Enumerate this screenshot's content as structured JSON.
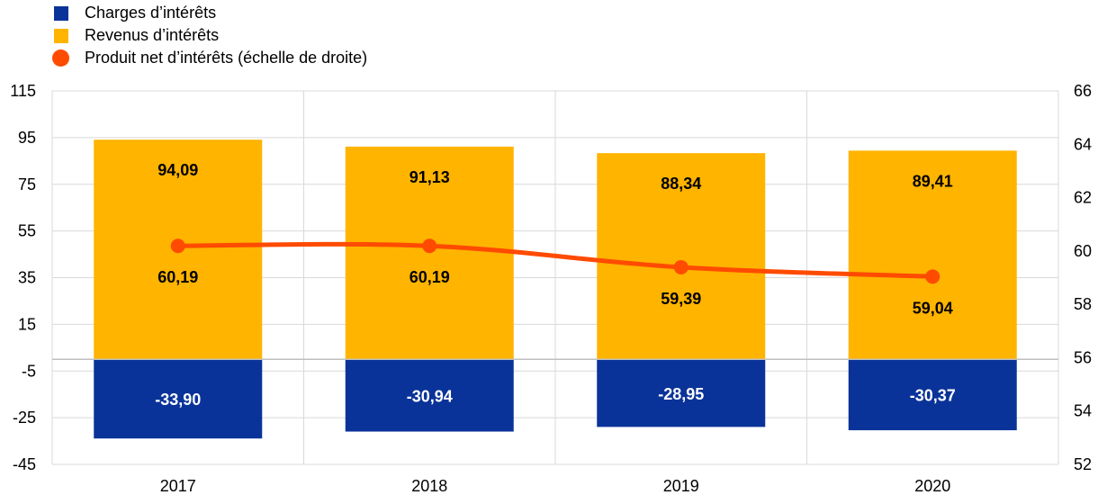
{
  "colors": {
    "charges": "#0a3399",
    "revenus": "#ffb400",
    "net": "#ff4b00",
    "grid": "#d9d9d9",
    "axis": "#bfbfbf"
  },
  "chart_data": {
    "type": "bar",
    "categories": [
      "2017",
      "2018",
      "2019",
      "2020"
    ],
    "series": [
      {
        "name": "Charges d’intérêts",
        "values": [
          -33.9,
          -30.94,
          -28.95,
          -30.37
        ],
        "labels": [
          "-33,90",
          "-30,94",
          "-28,95",
          "-30,37"
        ],
        "kind": "bar",
        "color_key": "charges"
      },
      {
        "name": "Revenus d’intérêts",
        "values": [
          94.09,
          91.13,
          88.34,
          89.41
        ],
        "labels": [
          "94,09",
          "91,13",
          "88,34",
          "89,41"
        ],
        "kind": "bar",
        "color_key": "revenus"
      },
      {
        "name": "Produit net d’intérêts (échelle de droite)",
        "values": [
          60.19,
          60.19,
          59.39,
          59.04
        ],
        "labels": [
          "60,19",
          "60,19",
          "59,39",
          "59,04"
        ],
        "kind": "line",
        "axis": "right",
        "color_key": "net"
      }
    ],
    "y_left": {
      "min": -45,
      "max": 115,
      "ticks": [
        "115",
        "95",
        "75",
        "55",
        "35",
        "15",
        "-5",
        "-25",
        "-45"
      ]
    },
    "y_right": {
      "min": 52,
      "max": 66,
      "ticks": [
        "66",
        "64",
        "62",
        "60",
        "58",
        "56",
        "54",
        "52"
      ]
    },
    "grid": true,
    "legend_position": "top-left"
  }
}
